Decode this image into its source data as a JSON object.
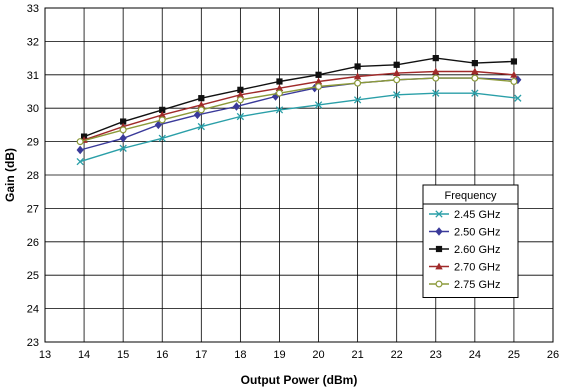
{
  "chart_data": {
    "type": "line",
    "title": "",
    "xlabel": "Output Power (dBm)",
    "ylabel": "Gain (dB)",
    "xlim": [
      13,
      26
    ],
    "ylim": [
      23,
      33
    ],
    "xticks": [
      13,
      14,
      15,
      16,
      17,
      18,
      19,
      20,
      21,
      22,
      23,
      24,
      25,
      26
    ],
    "yticks": [
      23,
      24,
      25,
      26,
      27,
      28,
      29,
      30,
      31,
      32,
      33
    ],
    "grid": true,
    "legend": {
      "title": "Frequency",
      "placement": "lower-right"
    },
    "series": [
      {
        "name": "2.45 GHz",
        "color": "#2a9fa8",
        "marker": "x",
        "x": [
          13.9,
          15.0,
          16.0,
          17.0,
          18.0,
          19.0,
          20.0,
          21.0,
          22.0,
          23.0,
          24.0,
          25.1
        ],
        "y": [
          28.4,
          28.8,
          29.1,
          29.45,
          29.75,
          29.95,
          30.1,
          30.25,
          30.4,
          30.45,
          30.45,
          30.3
        ]
      },
      {
        "name": "2.50 GHz",
        "color": "#3a3a9a",
        "marker": "diamond",
        "x": [
          13.9,
          15.0,
          15.9,
          16.9,
          17.9,
          18.9,
          19.9,
          21.0,
          22.0,
          23.0,
          24.0,
          25.1
        ],
        "y": [
          28.75,
          29.1,
          29.5,
          29.8,
          30.05,
          30.35,
          30.6,
          30.75,
          30.85,
          30.9,
          30.9,
          30.85
        ]
      },
      {
        "name": "2.60 GHz",
        "color": "#111111",
        "marker": "square",
        "x": [
          14.0,
          15.0,
          16.0,
          17.0,
          18.0,
          19.0,
          20.0,
          21.0,
          22.0,
          23.0,
          24.0,
          25.0
        ],
        "y": [
          29.15,
          29.6,
          29.95,
          30.3,
          30.55,
          30.8,
          31.0,
          31.25,
          31.3,
          31.5,
          31.35,
          31.4
        ]
      },
      {
        "name": "2.70 GHz",
        "color": "#a02a2a",
        "marker": "triangle",
        "x": [
          14.0,
          15.0,
          16.0,
          17.0,
          18.0,
          19.0,
          20.0,
          21.0,
          22.0,
          23.0,
          24.0,
          25.0
        ],
        "y": [
          29.05,
          29.45,
          29.8,
          30.1,
          30.4,
          30.6,
          30.8,
          30.95,
          31.05,
          31.1,
          31.1,
          31.0
        ]
      },
      {
        "name": "2.75 GHz",
        "color": "#8c9a3a",
        "marker": "circle",
        "x": [
          13.9,
          15.0,
          16.0,
          17.0,
          18.0,
          19.0,
          20.0,
          21.0,
          22.0,
          23.0,
          24.0,
          25.0
        ],
        "y": [
          29.0,
          29.35,
          29.65,
          29.95,
          30.25,
          30.45,
          30.65,
          30.75,
          30.85,
          30.9,
          30.9,
          30.8
        ]
      }
    ]
  }
}
